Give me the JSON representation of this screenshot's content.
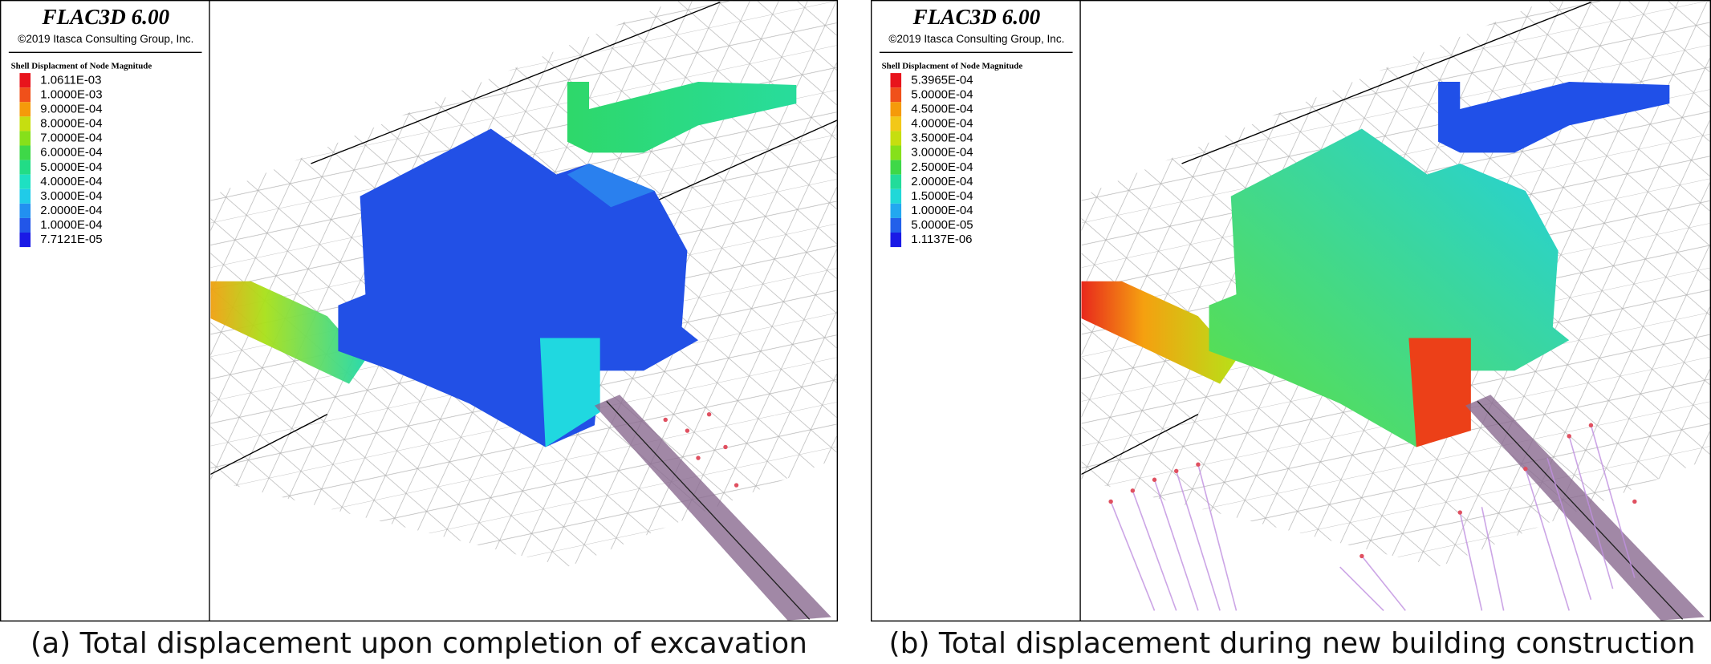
{
  "panels": [
    {
      "title": "FLAC3D 6.00",
      "copyright": "©2019 Itasca Consulting Group, Inc.",
      "legend_title": "Shell Displacment of Node Magnitude",
      "legend": [
        {
          "label": "1.0611E-03",
          "color": "#e8141c"
        },
        {
          "label": "1.0000E-03",
          "color": "#f0501a"
        },
        {
          "label": "9.0000E-04",
          "color": "#f59a0a"
        },
        {
          "label": "8.0000E-04",
          "color": "#c6de10"
        },
        {
          "label": "7.0000E-04",
          "color": "#86e01a"
        },
        {
          "label": "6.0000E-04",
          "color": "#3ed848"
        },
        {
          "label": "5.0000E-04",
          "color": "#22dc86"
        },
        {
          "label": "4.0000E-04",
          "color": "#1ee0c2"
        },
        {
          "label": "3.0000E-04",
          "color": "#20cbe8"
        },
        {
          "label": "2.0000E-04",
          "color": "#2290f0"
        },
        {
          "label": "1.0000E-04",
          "color": "#2256e8"
        },
        {
          "label": "7.7121E-05",
          "color": "#1a1ae6"
        }
      ],
      "caption": "(a) Total displacement upon completion of excavation"
    },
    {
      "title": "FLAC3D 6.00",
      "copyright": "©2019 Itasca Consulting Group, Inc.",
      "legend_title": "Shell Displacment of Node Magnitude",
      "legend": [
        {
          "label": "5.3965E-04",
          "color": "#e8141c"
        },
        {
          "label": "5.0000E-04",
          "color": "#f0501a"
        },
        {
          "label": "4.5000E-04",
          "color": "#f59a0a"
        },
        {
          "label": "4.0000E-04",
          "color": "#f2c818"
        },
        {
          "label": "3.5000E-04",
          "color": "#c6de10"
        },
        {
          "label": "3.0000E-04",
          "color": "#86e01a"
        },
        {
          "label": "2.5000E-04",
          "color": "#3ed848"
        },
        {
          "label": "2.0000E-04",
          "color": "#22dc9a"
        },
        {
          "label": "1.5000E-04",
          "color": "#20d8d8"
        },
        {
          "label": "1.0000E-04",
          "color": "#22a8f0"
        },
        {
          "label": "5.0000E-05",
          "color": "#2260ea"
        },
        {
          "label": "1.1137E-06",
          "color": "#1a1ae6"
        }
      ],
      "caption": "(b) Total displacement during new building construction"
    }
  ]
}
